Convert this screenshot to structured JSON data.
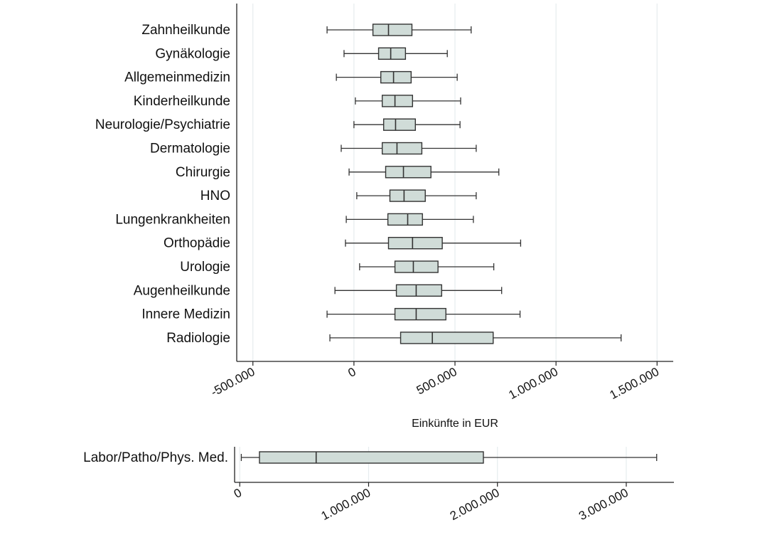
{
  "chart_data": [
    {
      "type": "boxplot",
      "orientation": "horizontal",
      "xlabel": "Einkünfte in EUR",
      "xlim": [
        -580000,
        1580000
      ],
      "xticks": [
        -500000,
        0,
        500000,
        1000000,
        1500000
      ],
      "xtick_labels": [
        "-500.000",
        "0",
        "500.000",
        "1.000.000",
        "1.500.000"
      ],
      "grid": true,
      "box_color": "#d0dcd8",
      "categories": [
        "Zahnheilkunde",
        "Gynäkologie",
        "Allgemeinmedizin",
        "Kinderheilkunde",
        "Neurologie/Psychiatrie",
        "Dermatologie",
        "Chirurgie",
        "HNO",
        "Lungenkrankheiten",
        "Orthopädie",
        "Urologie",
        "Augenheilkunde",
        "Innere Medizin",
        "Radiologie"
      ],
      "boxes": [
        {
          "whisker_low": -133000,
          "q1": 94000,
          "median": 171000,
          "q3": 287000,
          "whisker_high": 580000
        },
        {
          "whisker_low": -49000,
          "q1": 122000,
          "median": 182000,
          "q3": 255000,
          "whisker_high": 462000
        },
        {
          "whisker_low": -87000,
          "q1": 133000,
          "median": 196000,
          "q3": 283000,
          "whisker_high": 511000
        },
        {
          "whisker_low": 7000,
          "q1": 140000,
          "median": 203000,
          "q3": 290000,
          "whisker_high": 528000
        },
        {
          "whisker_low": 0,
          "q1": 147000,
          "median": 206000,
          "q3": 304000,
          "whisker_high": 525000
        },
        {
          "whisker_low": -63000,
          "q1": 140000,
          "median": 213000,
          "q3": 336000,
          "whisker_high": 605000
        },
        {
          "whisker_low": -24000,
          "q1": 157000,
          "median": 245000,
          "q3": 381000,
          "whisker_high": 717000
        },
        {
          "whisker_low": 14000,
          "q1": 178000,
          "median": 248000,
          "q3": 353000,
          "whisker_high": 605000
        },
        {
          "whisker_low": -38000,
          "q1": 168000,
          "median": 266000,
          "q3": 339000,
          "whisker_high": 591000
        },
        {
          "whisker_low": -42000,
          "q1": 171000,
          "median": 290000,
          "q3": 437000,
          "whisker_high": 825000
        },
        {
          "whisker_low": 28000,
          "q1": 203000,
          "median": 294000,
          "q3": 416000,
          "whisker_high": 692000
        },
        {
          "whisker_low": -94000,
          "q1": 210000,
          "median": 308000,
          "q3": 434000,
          "whisker_high": 731000
        },
        {
          "whisker_low": -133000,
          "q1": 203000,
          "median": 308000,
          "q3": 455000,
          "whisker_high": 822000
        },
        {
          "whisker_low": -119000,
          "q1": 231000,
          "median": 388000,
          "q3": 689000,
          "whisker_high": 1322000
        }
      ]
    },
    {
      "type": "boxplot",
      "orientation": "horizontal",
      "xlim": [
        -40000,
        3370000
      ],
      "xticks": [
        0,
        1000000,
        2000000,
        3000000
      ],
      "xtick_labels": [
        "0",
        "1.000.000",
        "2.000.000",
        "3.000.000"
      ],
      "grid": true,
      "box_color": "#d0dcd8",
      "categories": [
        "Labor/Patho/Phys. Med."
      ],
      "boxes": [
        {
          "whisker_low": 12000,
          "q1": 153000,
          "median": 593000,
          "q3": 1891000,
          "whisker_high": 3236000
        }
      ]
    }
  ]
}
